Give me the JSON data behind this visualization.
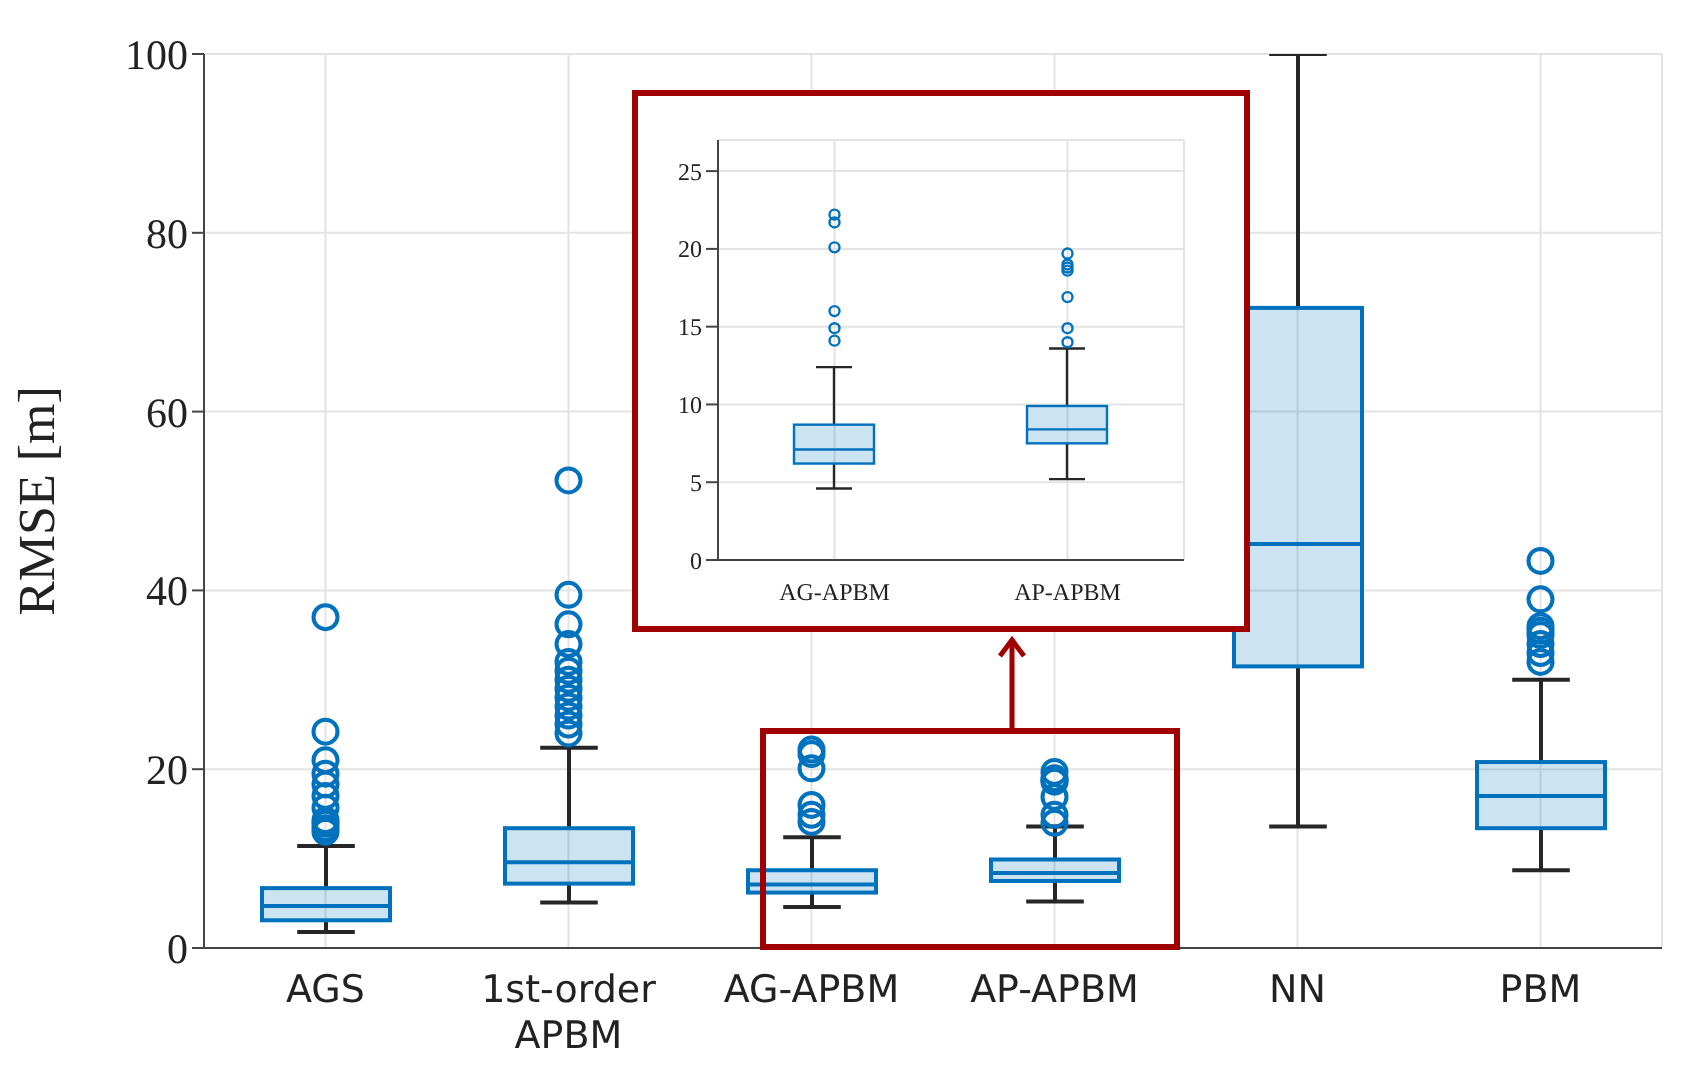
{
  "chart_data": [
    {
      "type": "box",
      "ylabel": "RMSE [m]",
      "categories": [
        "AGS",
        "1st-order APBM",
        "AG-APBM",
        "AP-APBM",
        "NN",
        "PBM"
      ],
      "ylim": [
        0,
        100
      ],
      "yticks": [
        0,
        20,
        40,
        60,
        80,
        100
      ],
      "grid": true,
      "marker": "circle",
      "series": [
        {
          "color": "#0072bd",
          "boxes": [
            {
              "low": 1.8,
              "q1": 3.1,
              "median": 4.7,
              "q3": 6.7,
              "high": 11.4,
              "outliers": [
                37,
                24.2,
                21,
                19.5,
                18.3,
                17,
                15.7,
                14.3,
                13.9,
                13.4,
                13
              ]
            },
            {
              "low": 5.1,
              "q1": 7.2,
              "median": 9.6,
              "q3": 13.4,
              "high": 22.4,
              "outliers": [
                52.3,
                39.5,
                36.2,
                34,
                32,
                31,
                30,
                29,
                28,
                27,
                26,
                25,
                24
              ]
            },
            {
              "low": 4.6,
              "q1": 6.2,
              "median": 7.1,
              "q3": 8.7,
              "high": 12.4,
              "outliers": [
                22.2,
                21.7,
                20.1,
                16,
                14.9,
                14.1
              ]
            },
            {
              "low": 5.2,
              "q1": 7.5,
              "median": 8.4,
              "q3": 9.9,
              "high": 13.6,
              "outliers": [
                19.7,
                19,
                18.8,
                18.6,
                16.9,
                14.9,
                14
              ]
            },
            {
              "low": 13.6,
              "q1": 31.5,
              "median": 45.2,
              "q3": 71.6,
              "high": 100
            },
            {
              "low": 8.7,
              "q1": 13.4,
              "median": 17,
              "q3": 20.8,
              "high": 30,
              "outliers": [
                43.3,
                39,
                36,
                35.5,
                35,
                34,
                33,
                32
              ]
            }
          ]
        }
      ]
    },
    {
      "type": "box",
      "categories": [
        "AG-APBM",
        "AP-APBM"
      ],
      "ylim": [
        0,
        27
      ],
      "yticks": [
        0,
        5,
        10,
        15,
        20,
        25
      ],
      "grid": true,
      "marker": "circle",
      "series": [
        {
          "color": "#0072bd",
          "boxes": [
            {
              "low": 4.6,
              "q1": 6.2,
              "median": 7.1,
              "q3": 8.7,
              "high": 12.4,
              "outliers": [
                22.2,
                21.7,
                20.1,
                16,
                14.9,
                14.1
              ]
            },
            {
              "low": 5.2,
              "q1": 7.5,
              "median": 8.4,
              "q3": 9.9,
              "high": 13.6,
              "outliers": [
                19.7,
                19,
                18.8,
                18.6,
                16.9,
                14.9,
                14
              ]
            }
          ]
        }
      ]
    }
  ]
}
